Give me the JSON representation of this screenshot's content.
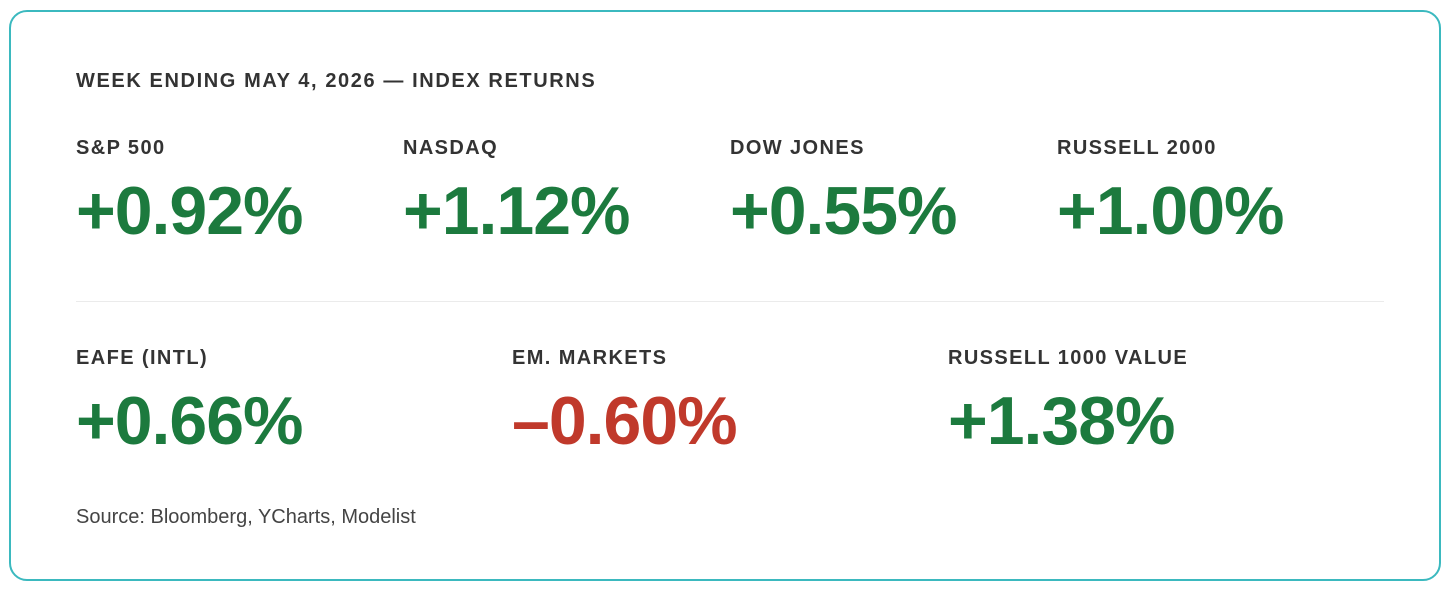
{
  "title": "WEEK ENDING MAY 4, 2026 — INDEX RETURNS",
  "colors": {
    "border": "#3bb9bf",
    "positive": "#1c7a3e",
    "negative": "#c0392b",
    "label": "#333333"
  },
  "rows": [
    {
      "stats": [
        {
          "label": "S&P 500",
          "value": "+0.92%",
          "direction": "positive"
        },
        {
          "label": "NASDAQ",
          "value": "+1.12%",
          "direction": "positive"
        },
        {
          "label": "DOW JONES",
          "value": "+0.55%",
          "direction": "positive"
        },
        {
          "label": "RUSSELL 2000",
          "value": "+1.00%",
          "direction": "positive"
        }
      ]
    },
    {
      "stats": [
        {
          "label": "EAFE (INTL)",
          "value": "+0.66%",
          "direction": "positive"
        },
        {
          "label": "EM. MARKETS",
          "value": "–0.60%",
          "direction": "negative"
        },
        {
          "label": "RUSSELL 1000 VALUE",
          "value": "+1.38%",
          "direction": "positive"
        }
      ]
    }
  ],
  "source": "Source: Bloomberg, YCharts, Modelist"
}
